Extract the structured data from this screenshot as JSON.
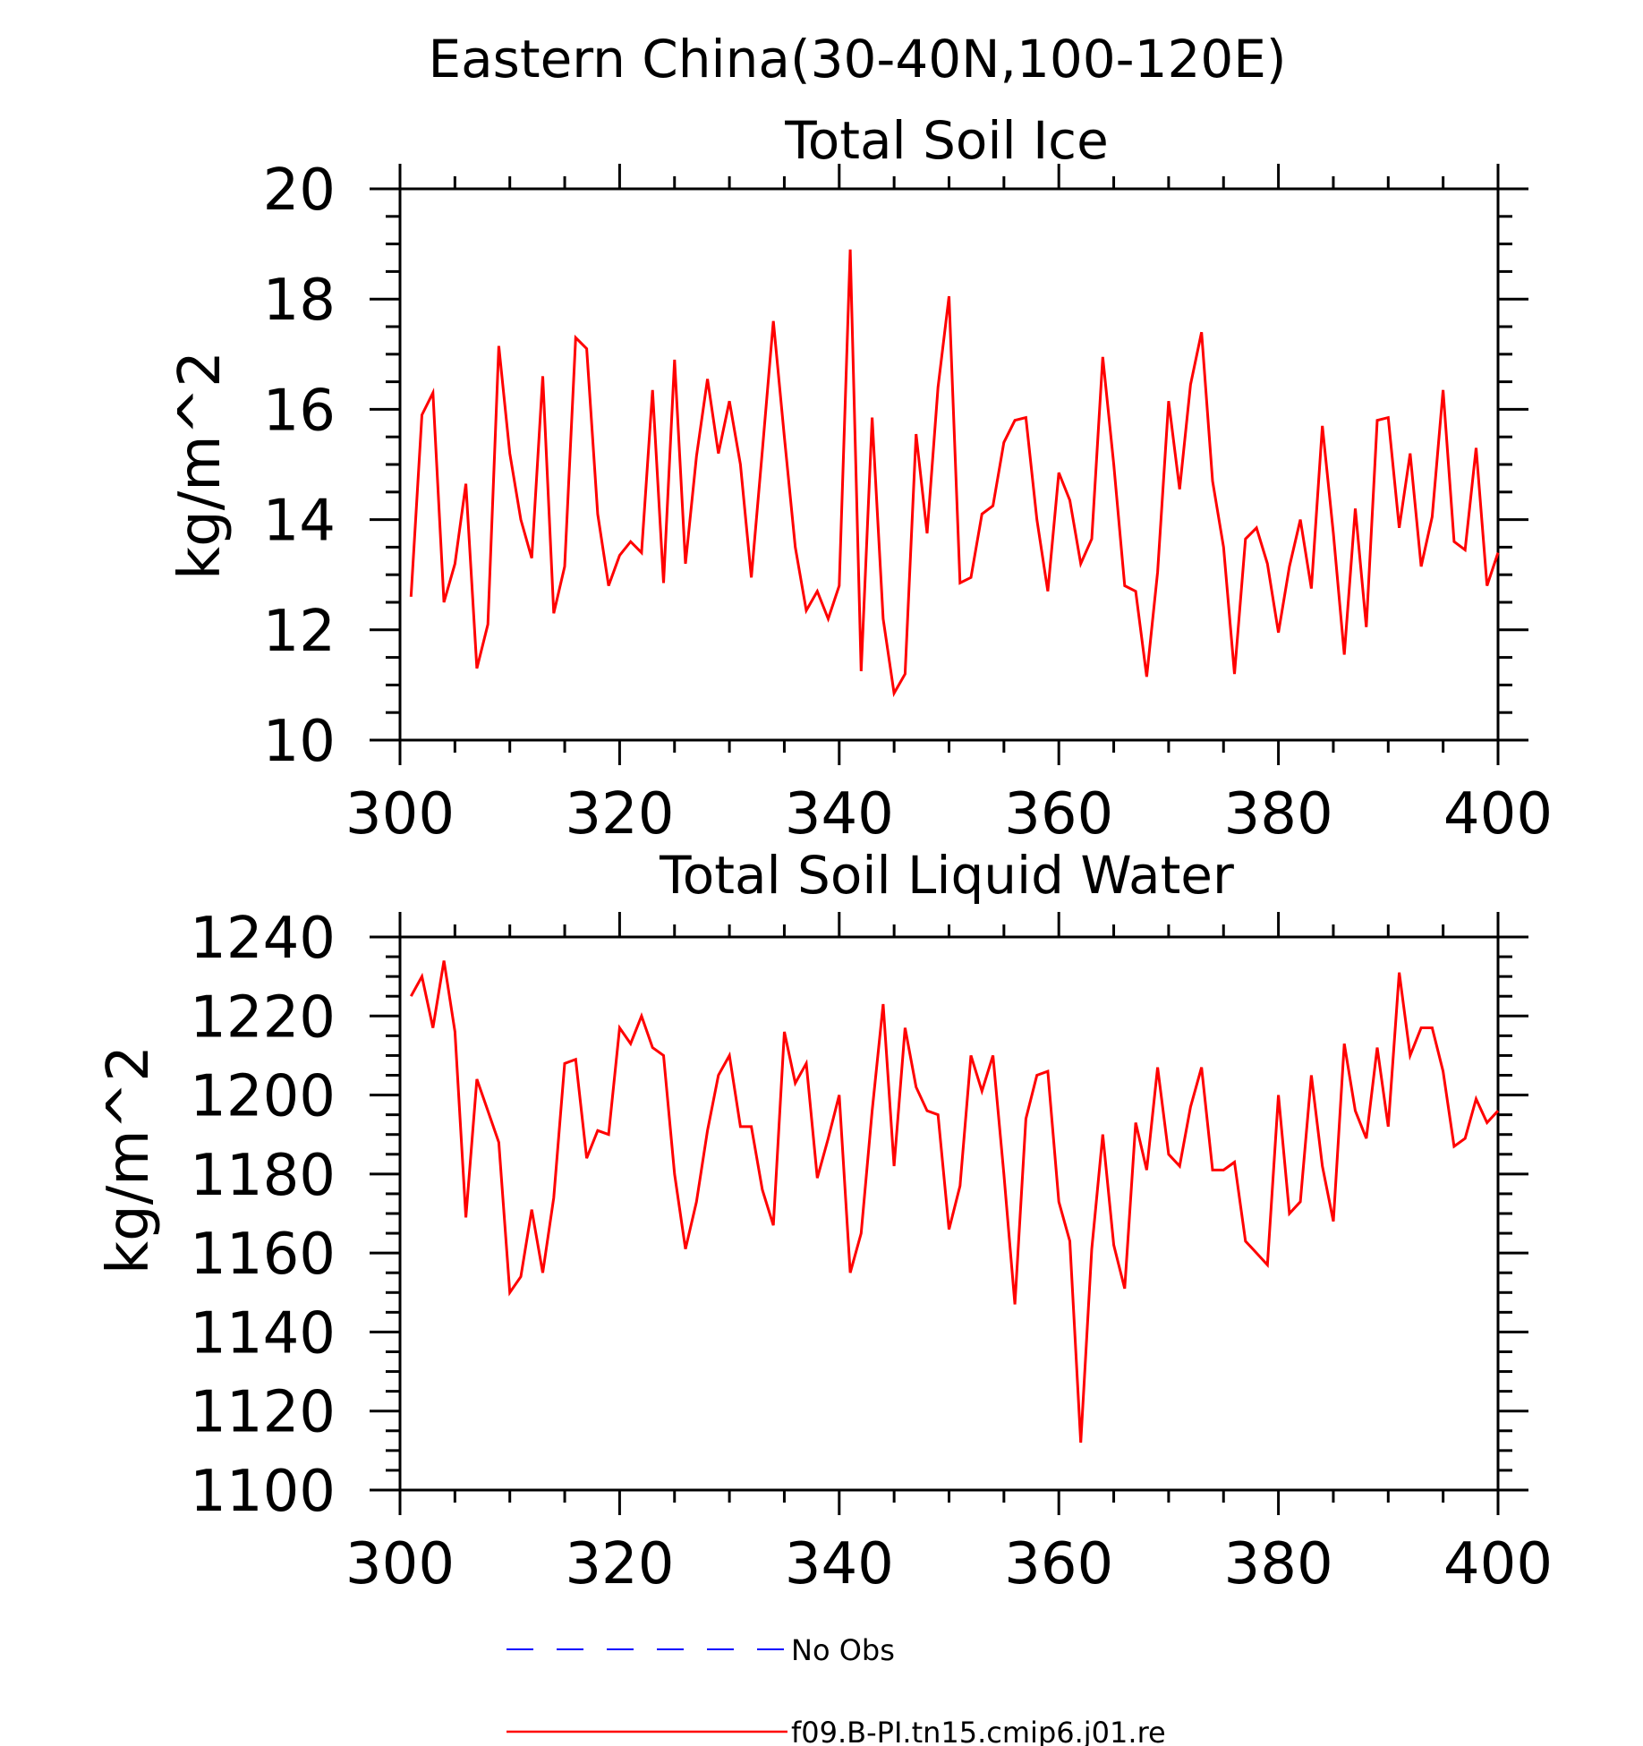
{
  "figure_title": "Eastern China(30-40N,100-120E)",
  "chart_data": [
    {
      "type": "line",
      "title": "Total Soil Ice",
      "xlabel": "",
      "ylabel": "kg/m^2",
      "xlim": [
        300,
        400
      ],
      "ylim": [
        10,
        20
      ],
      "x_ticks": [
        300,
        320,
        340,
        360,
        380,
        400
      ],
      "y_ticks": [
        10,
        12,
        14,
        16,
        18,
        20
      ],
      "grid": false,
      "series": [
        {
          "name": "f09.B-PI.tn15.cmip6.j01.re",
          "color": "#ff0000",
          "x_start": 301,
          "x_step": 1,
          "values": [
            12.6,
            15.9,
            16.3,
            12.5,
            13.2,
            14.65,
            11.3,
            12.1,
            17.15,
            15.2,
            14.0,
            13.3,
            16.6,
            12.3,
            13.15,
            17.3,
            17.1,
            14.1,
            12.8,
            13.35,
            13.6,
            13.4,
            16.35,
            12.85,
            16.9,
            13.2,
            15.15,
            16.55,
            15.2,
            16.15,
            15.0,
            12.95,
            15.25,
            17.6,
            15.5,
            13.5,
            12.35,
            12.7,
            12.2,
            12.8,
            18.9,
            11.25,
            15.85,
            12.2,
            10.85,
            11.2,
            15.55,
            13.75,
            16.4,
            18.05,
            12.85,
            12.95,
            14.1,
            14.25,
            15.4,
            15.8,
            15.85,
            14.0,
            12.7,
            14.85,
            14.35,
            13.2,
            13.65,
            16.95,
            15.0,
            12.8,
            12.7,
            11.15,
            13.05,
            16.15,
            14.55,
            16.45,
            17.4,
            14.7,
            13.5,
            11.2,
            13.65,
            13.85,
            13.2,
            11.95,
            13.15,
            14.0,
            12.75,
            15.7,
            13.75,
            11.55,
            14.2,
            12.05,
            15.8,
            15.85,
            13.85,
            15.2,
            13.15,
            14.05,
            16.35,
            13.6,
            13.45,
            15.3,
            12.8,
            13.4
          ]
        }
      ]
    },
    {
      "type": "line",
      "title": "Total Soil Liquid Water",
      "xlabel": "",
      "ylabel": "kg/m^2",
      "xlim": [
        300,
        400
      ],
      "ylim": [
        1100,
        1240
      ],
      "x_ticks": [
        300,
        320,
        340,
        360,
        380,
        400
      ],
      "y_ticks": [
        1100,
        1120,
        1140,
        1160,
        1180,
        1200,
        1220,
        1240
      ],
      "grid": false,
      "series": [
        {
          "name": "f09.B-PI.tn15.cmip6.j01.re",
          "color": "#ff0000",
          "x_start": 301,
          "x_step": 1,
          "values": [
            1225,
            1230,
            1217,
            1234,
            1216,
            1169,
            1204,
            1196,
            1188,
            1150,
            1154,
            1171,
            1155,
            1174,
            1208,
            1209,
            1184,
            1191,
            1190,
            1217,
            1213,
            1220,
            1212,
            1210,
            1180,
            1161,
            1173,
            1191,
            1205,
            1210,
            1192,
            1192,
            1176,
            1167,
            1216,
            1203,
            1208,
            1179,
            1189,
            1200,
            1155,
            1165,
            1196,
            1223,
            1182,
            1217,
            1202,
            1196,
            1195,
            1166,
            1177,
            1210,
            1201,
            1210,
            1180,
            1147,
            1194,
            1205,
            1206,
            1173,
            1163,
            1112,
            1161,
            1190,
            1162,
            1151,
            1193,
            1181,
            1207,
            1185,
            1182,
            1197,
            1207,
            1181,
            1181,
            1183,
            1163,
            1160,
            1157,
            1200,
            1170,
            1173,
            1205,
            1182,
            1168,
            1213,
            1196,
            1189,
            1212,
            1192,
            1231,
            1210,
            1217,
            1217,
            1206,
            1187,
            1189,
            1199,
            1193,
            1196
          ]
        }
      ]
    }
  ],
  "legend": [
    {
      "label": "No Obs",
      "color": "#0000ff",
      "style": "dashed"
    },
    {
      "label": "f09.B-PI.tn15.cmip6.j01.re",
      "color": "#ff0000",
      "style": "solid"
    }
  ]
}
